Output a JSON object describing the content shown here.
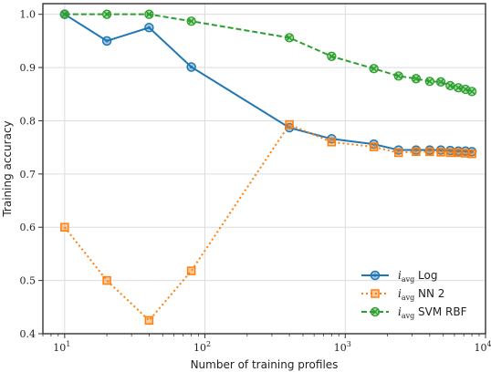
{
  "chart_data": {
    "type": "line",
    "title": "",
    "xlabel": "Number of training profiles",
    "ylabel": "Training accuracy",
    "xscale": "log",
    "xlim": [
      7,
      10000
    ],
    "ylim": [
      0.4,
      1.02
    ],
    "xticks": [
      {
        "value": 10,
        "base": "10",
        "exp": "1"
      },
      {
        "value": 100,
        "base": "10",
        "exp": "2"
      },
      {
        "value": 1000,
        "base": "10",
        "exp": "3"
      },
      {
        "value": 10000,
        "base": "10",
        "exp": "4"
      }
    ],
    "yticks": [
      {
        "value": 0.4,
        "label": "0.4"
      },
      {
        "value": 0.5,
        "label": "0.5"
      },
      {
        "value": 0.6,
        "label": "0.6"
      },
      {
        "value": 0.7,
        "label": "0.7"
      },
      {
        "value": 0.8,
        "label": "0.8"
      },
      {
        "value": 0.9,
        "label": "0.9"
      },
      {
        "value": 1.0,
        "label": "1.0"
      }
    ],
    "grid": true,
    "legend_position": "lower-right",
    "series": [
      {
        "name": "Log",
        "symbol": "i",
        "subscript": "avg",
        "color": "#1f77b4",
        "linestyle": "solid",
        "marker": "circle",
        "x": [
          10,
          20,
          40,
          80,
          400,
          800,
          1600,
          2400,
          3200,
          4000,
          4800,
          5600,
          6400,
          7200,
          8000
        ],
        "y": [
          1.0,
          0.95,
          0.975,
          0.901,
          0.787,
          0.766,
          0.756,
          0.745,
          0.745,
          0.745,
          0.745,
          0.744,
          0.743,
          0.743,
          0.742
        ]
      },
      {
        "name": "NN 2",
        "symbol": "i",
        "subscript": "avg",
        "color": "#ff7f0e",
        "linestyle": "dotted",
        "marker": "square",
        "x": [
          10,
          20,
          40,
          80,
          400,
          800,
          1600,
          2400,
          3200,
          4000,
          4800,
          5600,
          6400,
          7200,
          8000
        ],
        "y": [
          0.6,
          0.5,
          0.425,
          0.518,
          0.793,
          0.76,
          0.751,
          0.74,
          0.742,
          0.742,
          0.741,
          0.74,
          0.74,
          0.739,
          0.738
        ]
      },
      {
        "name": "SVM RBF",
        "symbol": "i",
        "subscript": "avg",
        "color": "#2ca02c",
        "linestyle": "dashed",
        "marker": "x-circle",
        "x": [
          10,
          20,
          40,
          80,
          400,
          800,
          1600,
          2400,
          3200,
          4000,
          4800,
          5600,
          6400,
          7200,
          8000
        ],
        "y": [
          1.0,
          1.0,
          1.0,
          0.987,
          0.956,
          0.921,
          0.898,
          0.884,
          0.879,
          0.874,
          0.873,
          0.866,
          0.862,
          0.859,
          0.855
        ]
      }
    ]
  }
}
